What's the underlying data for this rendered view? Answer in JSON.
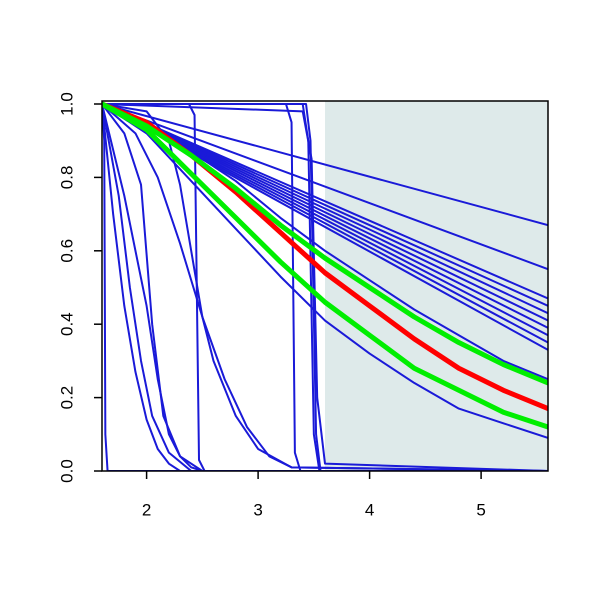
{
  "chart_data": {
    "type": "line",
    "xlim": [
      1.6,
      5.6
    ],
    "ylim": [
      0,
      1
    ],
    "xticks": [
      2,
      3,
      4,
      5
    ],
    "yticks": [
      {
        "value": 0,
        "label": "0.0"
      },
      0.2,
      0.4,
      0.6,
      0.8,
      {
        "value": 1,
        "label": "1.0"
      }
    ],
    "shaded_region": {
      "x": [
        3.6,
        5.6
      ],
      "color": "#deeaea"
    },
    "series": [
      {
        "color": "#1a1ad8",
        "linewidth": 2,
        "x": [
          1.6,
          5.6
        ],
        "values": [
          1,
          0.67
        ]
      },
      {
        "color": "#1a1ad8",
        "linewidth": 2,
        "x": [
          1.6,
          5.6
        ],
        "values": [
          1,
          0.55
        ]
      },
      {
        "color": "#1a1ad8",
        "linewidth": 2,
        "x": [
          1.6,
          5.6
        ],
        "values": [
          1,
          0.47
        ]
      },
      {
        "color": "#1a1ad8",
        "linewidth": 2,
        "x": [
          1.6,
          5.6
        ],
        "values": [
          1,
          0.45
        ]
      },
      {
        "color": "#1a1ad8",
        "linewidth": 2,
        "x": [
          1.6,
          5.6
        ],
        "values": [
          1,
          0.43
        ]
      },
      {
        "color": "#1a1ad8",
        "linewidth": 2,
        "x": [
          1.6,
          5.6
        ],
        "values": [
          1,
          0.41
        ]
      },
      {
        "color": "#1a1ad8",
        "linewidth": 2,
        "x": [
          1.6,
          5.6
        ],
        "values": [
          1,
          0.39
        ]
      },
      {
        "color": "#1a1ad8",
        "linewidth": 2,
        "x": [
          1.6,
          5.6
        ],
        "values": [
          1,
          0.37
        ]
      },
      {
        "color": "#1a1ad8",
        "linewidth": 2,
        "x": [
          1.6,
          5.6
        ],
        "values": [
          1,
          0.35
        ]
      },
      {
        "color": "#1a1ad8",
        "linewidth": 2,
        "x": [
          1.6,
          5.6
        ],
        "values": [
          1,
          0.33
        ]
      },
      {
        "color": "#1a1ad8",
        "linewidth": 2,
        "x": [
          1.6,
          2.0,
          2.4,
          2.8,
          3.2,
          3.6,
          4.0,
          4.4,
          4.8,
          5.2,
          5.6
        ],
        "values": [
          1,
          0.95,
          0.87,
          0.79,
          0.69,
          0.6,
          0.52,
          0.44,
          0.37,
          0.3,
          0.25
        ]
      },
      {
        "color": "#1a1ad8",
        "linewidth": 2,
        "x": [
          1.6,
          2.0,
          2.4,
          2.8,
          3.2,
          3.6,
          4.0,
          4.4,
          4.8,
          5.2,
          5.6
        ],
        "values": [
          1,
          0.92,
          0.79,
          0.66,
          0.53,
          0.41,
          0.32,
          0.24,
          0.17,
          0.13,
          0.09
        ]
      },
      {
        "color": "#1a1ad8",
        "linewidth": 2,
        "x": [
          1.6,
          1.62,
          1.63,
          1.65,
          5.6
        ],
        "values": [
          1,
          0.9,
          0.1,
          0,
          0
        ]
      },
      {
        "color": "#1a1ad8",
        "linewidth": 2,
        "x": [
          1.6,
          2.38,
          2.43,
          2.47,
          2.52,
          5.6
        ],
        "values": [
          1,
          1,
          0.97,
          0.03,
          0,
          0
        ]
      },
      {
        "color": "#1a1ad8",
        "linewidth": 2,
        "x": [
          1.6,
          3.25,
          3.3,
          3.33,
          3.38,
          5.6
        ],
        "values": [
          1,
          1,
          0.95,
          0.05,
          0,
          0
        ]
      },
      {
        "color": "#1a1ad8",
        "linewidth": 2,
        "x": [
          1.6,
          3.4,
          3.45,
          3.5,
          3.55,
          5.6
        ],
        "values": [
          1,
          1,
          0.9,
          0.1,
          0,
          0
        ]
      },
      {
        "color": "#1a1ad8",
        "linewidth": 2,
        "x": [
          1.6,
          3.43,
          3.47,
          3.52,
          3.56,
          5.6
        ],
        "values": [
          1,
          1,
          0.9,
          0.1,
          0,
          0
        ]
      },
      {
        "color": "#1a1ad8",
        "linewidth": 2,
        "x": [
          1.6,
          3.4,
          3.48,
          3.53,
          3.6,
          5.6
        ],
        "values": [
          1,
          0.98,
          0.85,
          0.2,
          0.02,
          0
        ]
      },
      {
        "color": "#1a1ad8",
        "linewidth": 2,
        "x": [
          1.6,
          1.7,
          1.8,
          1.9,
          2.0,
          2.1,
          2.2,
          2.3,
          5.6
        ],
        "values": [
          1,
          0.7,
          0.45,
          0.27,
          0.14,
          0.06,
          0.02,
          0,
          0
        ]
      },
      {
        "color": "#1a1ad8",
        "linewidth": 2,
        "x": [
          1.6,
          1.8,
          2.0,
          2.1,
          2.2,
          2.3,
          2.4,
          2.5,
          5.6
        ],
        "values": [
          1,
          0.75,
          0.45,
          0.25,
          0.1,
          0.04,
          0.01,
          0,
          0
        ]
      },
      {
        "color": "#1a1ad8",
        "linewidth": 2,
        "x": [
          1.6,
          1.8,
          1.95,
          2.05,
          2.15,
          2.3,
          2.5,
          5.6
        ],
        "values": [
          1,
          0.92,
          0.78,
          0.4,
          0.15,
          0.04,
          0,
          0
        ]
      },
      {
        "color": "#1a1ad8",
        "linewidth": 2,
        "x": [
          1.6,
          2.0,
          2.2,
          2.3,
          2.4,
          2.5,
          2.6,
          2.8,
          3.0,
          3.3,
          5.6
        ],
        "values": [
          1,
          0.98,
          0.9,
          0.78,
          0.6,
          0.42,
          0.3,
          0.15,
          0.06,
          0.01,
          0
        ]
      },
      {
        "color": "#1a1ad8",
        "linewidth": 2,
        "x": [
          1.6,
          1.9,
          2.1,
          2.3,
          2.5,
          2.7,
          2.9,
          3.1,
          3.3,
          5.6
        ],
        "values": [
          1,
          0.92,
          0.8,
          0.62,
          0.42,
          0.25,
          0.12,
          0.04,
          0.01,
          0
        ]
      },
      {
        "color": "#1a1ad8",
        "linewidth": 2,
        "x": [
          1.6,
          1.75,
          1.85,
          1.95,
          2.05,
          2.2,
          2.4,
          5.6
        ],
        "values": [
          1,
          0.75,
          0.5,
          0.3,
          0.15,
          0.05,
          0,
          0
        ]
      },
      {
        "color": "#ff0000",
        "linewidth": 5,
        "x": [
          1.6,
          2.0,
          2.4,
          2.8,
          3.2,
          3.6,
          4.0,
          4.4,
          4.8,
          5.2,
          5.6
        ],
        "values": [
          1,
          0.95,
          0.86,
          0.76,
          0.65,
          0.54,
          0.45,
          0.36,
          0.28,
          0.22,
          0.17
        ]
      },
      {
        "color": "#00ee00",
        "linewidth": 5,
        "x": [
          1.6,
          2.0,
          2.4,
          2.8,
          3.2,
          3.6,
          4.0,
          4.4,
          4.8,
          5.2,
          5.6
        ],
        "values": [
          1,
          0.94,
          0.86,
          0.77,
          0.67,
          0.58,
          0.5,
          0.42,
          0.35,
          0.29,
          0.24
        ]
      },
      {
        "color": "#00ee00",
        "linewidth": 5,
        "x": [
          1.6,
          2.0,
          2.4,
          2.8,
          3.2,
          3.6,
          4.0,
          4.4,
          4.8,
          5.2,
          5.6
        ],
        "values": [
          1,
          0.93,
          0.81,
          0.69,
          0.57,
          0.46,
          0.37,
          0.28,
          0.22,
          0.16,
          0.12
        ]
      }
    ]
  }
}
